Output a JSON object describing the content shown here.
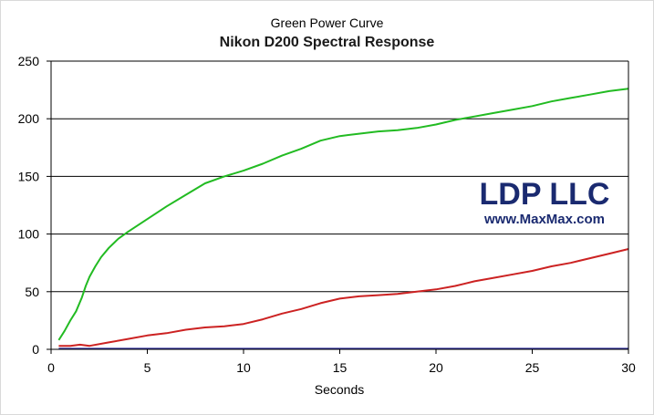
{
  "chart_data": {
    "type": "line",
    "title": "Green Power Curve",
    "subtitle": "Nikon D200 Spectral Response",
    "xlabel": "Seconds",
    "ylabel": "",
    "xlim": [
      0,
      30
    ],
    "ylim": [
      0,
      250
    ],
    "xticks": [
      "0",
      "5",
      "10",
      "15",
      "20",
      "25",
      "30"
    ],
    "yticks": [
      "0",
      "50",
      "100",
      "150",
      "200",
      "250"
    ],
    "grid": "horizontal",
    "series": [
      {
        "color": "#22bb22",
        "x": [
          0.4,
          0.7,
          1.0,
          1.3,
          1.6,
          1.8,
          2.0,
          2.3,
          2.6,
          3.0,
          3.5,
          4.0,
          5.0,
          6.0,
          7.0,
          8.0,
          9.0,
          10.0,
          11.0,
          12.0,
          13.0,
          14.0,
          15.0,
          16.0,
          17.0,
          18.0,
          19.0,
          20.0,
          21.0,
          22.0,
          23.0,
          24.0,
          25.0,
          26.0,
          27.0,
          28.0,
          29.0,
          30.0
        ],
        "y": [
          8,
          16,
          25,
          33,
          45,
          55,
          63,
          72,
          80,
          88,
          96,
          102,
          113,
          124,
          134,
          144,
          150,
          155,
          161,
          168,
          174,
          181,
          185,
          187,
          189,
          190,
          192,
          195,
          199,
          202,
          205,
          208,
          211,
          215,
          218,
          221,
          224,
          226
        ]
      },
      {
        "color": "#cc2222",
        "x": [
          0.4,
          1.0,
          1.5,
          2.0,
          3.0,
          4.0,
          5.0,
          6.0,
          7.0,
          8.0,
          9.0,
          10.0,
          11.0,
          12.0,
          13.0,
          14.0,
          15.0,
          16.0,
          17.0,
          18.0,
          19.0,
          20.0,
          21.0,
          22.0,
          23.0,
          24.0,
          25.0,
          26.0,
          27.0,
          28.0,
          29.0,
          30.0
        ],
        "y": [
          3,
          3,
          4,
          3,
          6,
          9,
          12,
          14,
          17,
          19,
          20,
          22,
          26,
          31,
          35,
          40,
          44,
          46,
          47,
          48,
          50,
          52,
          55,
          59,
          62,
          65,
          68,
          72,
          75,
          79,
          83,
          87
        ]
      },
      {
        "color": "#2a2a9a",
        "x": [
          0.4,
          30.0
        ],
        "y": [
          0.5,
          0.5
        ]
      }
    ]
  },
  "watermark": {
    "line1": "LDP LLC",
    "line2": "www.MaxMax.com"
  }
}
